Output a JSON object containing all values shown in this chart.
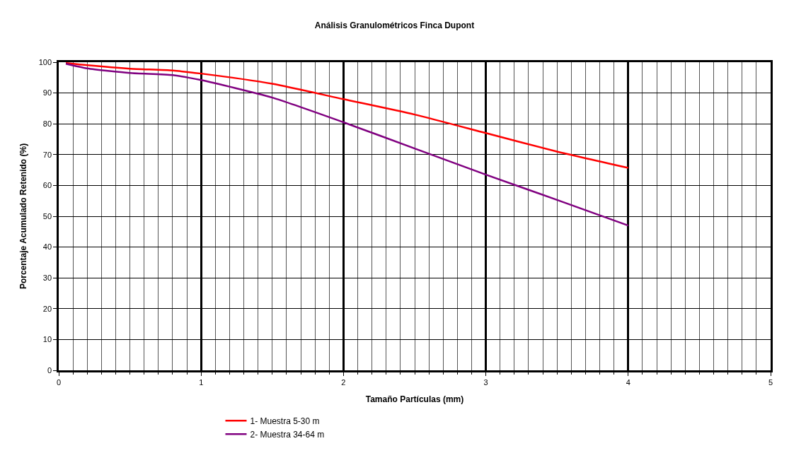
{
  "chart_data": {
    "type": "line",
    "title": "Análisis Granulométricos Finca Dupont",
    "xlabel": "Tamaño Partículas (mm)",
    "ylabel": "Porcentaje Acumulado Retenido (%)",
    "series": [
      {
        "name": "1- Muestra 5-30 m",
        "color": "#ff0000",
        "x": [
          0.05,
          0.2,
          0.5,
          0.8,
          1.0,
          1.5,
          2.0,
          2.5,
          3.0,
          3.5,
          4.0
        ],
        "values": [
          99.7,
          99.0,
          97.9,
          97.3,
          96.3,
          93,
          88,
          83,
          77,
          71,
          65.7
        ]
      },
      {
        "name": "2- Muestra 34-64 m",
        "color": "#800080",
        "x": [
          0.05,
          0.2,
          0.5,
          0.8,
          1.0,
          1.5,
          2.0,
          2.5,
          3.0,
          3.5,
          4.0
        ],
        "values": [
          99.5,
          98.0,
          96.5,
          95.8,
          94.2,
          88.5,
          80.5,
          72,
          63.5,
          55.3,
          47
        ]
      }
    ],
    "xlim": [
      0,
      5
    ],
    "ylim": [
      0,
      100
    ],
    "xticks": [
      0,
      {
        "value": 0.1,
        "label": null
      },
      {
        "value": 0.2,
        "label": null
      },
      {
        "value": 0.3,
        "label": null
      },
      {
        "value": 0.4,
        "label": null
      },
      {
        "value": 0.5,
        "label": null
      },
      {
        "value": 0.6,
        "label": null
      },
      {
        "value": 0.7,
        "label": null
      },
      {
        "value": 0.8,
        "label": null
      },
      {
        "value": 0.9,
        "label": null
      },
      1,
      {
        "value": 1.1,
        "label": null
      },
      {
        "value": 1.2,
        "label": null
      },
      {
        "value": 1.3,
        "label": null
      },
      {
        "value": 1.4,
        "label": null
      },
      {
        "value": 1.5,
        "label": null
      },
      {
        "value": 1.6,
        "label": null
      },
      {
        "value": 1.7,
        "label": null
      },
      {
        "value": 1.8,
        "label": null
      },
      {
        "value": 1.9,
        "label": null
      },
      2,
      {
        "value": 2.1,
        "label": null
      },
      {
        "value": 2.2,
        "label": null
      },
      {
        "value": 2.3,
        "label": null
      },
      {
        "value": 2.4,
        "label": null
      },
      {
        "value": 2.5,
        "label": null
      },
      {
        "value": 2.6,
        "label": null
      },
      {
        "value": 2.7,
        "label": null
      },
      {
        "value": 2.8,
        "label": null
      },
      {
        "value": 2.9,
        "label": null
      },
      3,
      {
        "value": 3.1,
        "label": null
      },
      {
        "value": 3.2,
        "label": null
      },
      {
        "value": 3.3,
        "label": null
      },
      {
        "value": 3.4,
        "label": null
      },
      {
        "value": 3.5,
        "label": null
      },
      {
        "value": 3.6,
        "label": null
      },
      {
        "value": 3.7,
        "label": null
      },
      {
        "value": 3.8,
        "label": null
      },
      {
        "value": 3.9,
        "label": null
      },
      4,
      {
        "value": 4.1,
        "label": null
      },
      {
        "value": 4.2,
        "label": null
      },
      {
        "value": 4.3,
        "label": null
      },
      {
        "value": 4.4,
        "label": null
      },
      {
        "value": 4.5,
        "label": null
      },
      {
        "value": 4.6,
        "label": null
      },
      {
        "value": 4.7,
        "label": null
      },
      {
        "value": 4.8,
        "label": null
      },
      {
        "value": 4.9,
        "label": null
      },
      5
    ],
    "yticks": [
      0,
      10,
      20,
      30,
      40,
      50,
      60,
      70,
      80,
      90,
      100
    ],
    "grid": true,
    "legend": "bottom",
    "marker": "none",
    "line_style": "solid"
  }
}
